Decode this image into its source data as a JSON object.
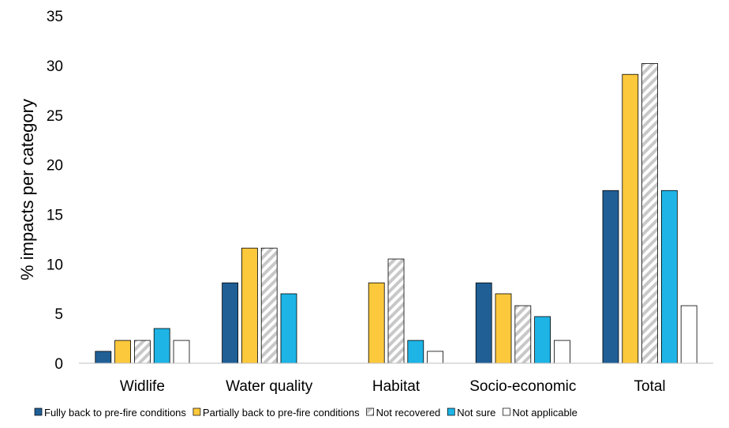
{
  "chart_data": {
    "type": "bar",
    "title": "",
    "xlabel": "",
    "ylabel": "% impacts per category",
    "ylim": [
      0,
      35
    ],
    "yticks": [
      0,
      5,
      10,
      15,
      20,
      25,
      30,
      35
    ],
    "grid": false,
    "legend_position": "bottom",
    "categories": [
      "Widlife",
      "Water quality",
      "Habitat",
      "Socio-economic",
      "Total"
    ],
    "series": [
      {
        "name": "Fully back to pre-fire conditions",
        "color": "#1f5f96",
        "pattern": "solid",
        "values": [
          1.2,
          8.1,
          0,
          8.1,
          17.4
        ]
      },
      {
        "name": "Partially back to pre-fire conditions",
        "color": "#fcc83c",
        "pattern": "solid",
        "values": [
          2.3,
          11.6,
          8.1,
          7.0,
          29.1
        ]
      },
      {
        "name": "Not recovered",
        "color": "#c8c8c8",
        "pattern": "diagonal-hatch",
        "values": [
          2.3,
          11.6,
          10.5,
          5.8,
          30.2
        ]
      },
      {
        "name": "Not sure",
        "color": "#1eb4e6",
        "pattern": "solid",
        "values": [
          3.5,
          7.0,
          2.3,
          4.7,
          17.4
        ]
      },
      {
        "name": "Not applicable",
        "color": "#ffffff",
        "pattern": "solid",
        "values": [
          2.3,
          0,
          1.2,
          2.3,
          5.8
        ]
      }
    ]
  }
}
